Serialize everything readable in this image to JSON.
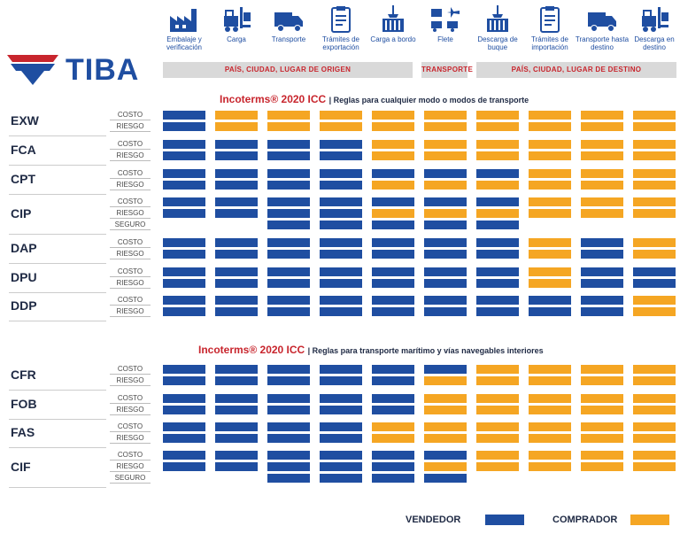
{
  "brand": {
    "name": "TIBA"
  },
  "colors": {
    "seller": "#1f4ea1",
    "buyer": "#f5a623",
    "accent": "#c8252d"
  },
  "steps": [
    {
      "label": "Embalaje y verificación",
      "icon": "factory-icon"
    },
    {
      "label": "Carga",
      "icon": "forklift-icon"
    },
    {
      "label": "Transporte",
      "icon": "truck-icon"
    },
    {
      "label": "Trámites de exportación",
      "icon": "clipboard-icon"
    },
    {
      "label": "Carga a bordo",
      "icon": "crane-icon"
    },
    {
      "label": "Flete",
      "icon": "multimodal-icon"
    },
    {
      "label": "Descarga de buque",
      "icon": "crane-icon"
    },
    {
      "label": "Trámites de importación",
      "icon": "clipboard-icon"
    },
    {
      "label": "Transporte hasta destino",
      "icon": "truck-icon"
    },
    {
      "label": "Descarga en destino",
      "icon": "forklift-icon"
    }
  ],
  "bands": {
    "origin": "PAÍS, CIUDAD, LUGAR DE ORIGEN",
    "transport": "TRANSPORTE",
    "destination": "PAÍS, CIUDAD, LUGAR DE DESTINO"
  },
  "sections": [
    {
      "title": "Incoterms® 2020 ICC",
      "subtitle": "| Reglas para cualquier modo o modos de transporte",
      "terms": [
        {
          "code": "EXW",
          "rows": [
            {
              "label": "COSTO",
              "cells": "SBBBBBBBBB"
            },
            {
              "label": "RIESGO",
              "cells": "SBBBBBBBBB"
            }
          ]
        },
        {
          "code": "FCA",
          "rows": [
            {
              "label": "COSTO",
              "cells": "SSSSBBBBBB"
            },
            {
              "label": "RIESGO",
              "cells": "SSSSBBBBBB"
            }
          ]
        },
        {
          "code": "CPT",
          "rows": [
            {
              "label": "COSTO",
              "cells": "SSSSSSSBBB"
            },
            {
              "label": "RIESGO",
              "cells": "SSSSBBBBBB"
            }
          ]
        },
        {
          "code": "CIP",
          "rows": [
            {
              "label": "COSTO",
              "cells": "SSSSSSSBBB"
            },
            {
              "label": "RIESGO",
              "cells": "SSSSBBBBBB"
            },
            {
              "label": "SEGURO",
              "cells": "--SSSSS---"
            }
          ]
        },
        {
          "code": "DAP",
          "rows": [
            {
              "label": "COSTO",
              "cells": "SSSSSSSBSB"
            },
            {
              "label": "RIESGO",
              "cells": "SSSSSSSBSB"
            }
          ]
        },
        {
          "code": "DPU",
          "rows": [
            {
              "label": "COSTO",
              "cells": "SSSSSSSBSS"
            },
            {
              "label": "RIESGO",
              "cells": "SSSSSSSBSS"
            }
          ]
        },
        {
          "code": "DDP",
          "rows": [
            {
              "label": "COSTO",
              "cells": "SSSSSSSSSB"
            },
            {
              "label": "RIESGO",
              "cells": "SSSSSSSSSB"
            }
          ]
        }
      ]
    },
    {
      "title": "Incoterms® 2020 ICC",
      "subtitle": "| Reglas para transporte marítimo y vías navegables interiores",
      "terms": [
        {
          "code": "CFR",
          "rows": [
            {
              "label": "COSTO",
              "cells": "SSSSSSBBBB"
            },
            {
              "label": "RIESGO",
              "cells": "SSSSSBBBBB"
            }
          ]
        },
        {
          "code": "FOB",
          "rows": [
            {
              "label": "COSTO",
              "cells": "SSSSSBBBBB"
            },
            {
              "label": "RIESGO",
              "cells": "SSSSSBBBBB"
            }
          ]
        },
        {
          "code": "FAS",
          "rows": [
            {
              "label": "COSTO",
              "cells": "SSSSBBBBBB"
            },
            {
              "label": "RIESGO",
              "cells": "SSSSBBBBBB"
            }
          ]
        },
        {
          "code": "CIF",
          "rows": [
            {
              "label": "COSTO",
              "cells": "SSSSSSBBBB"
            },
            {
              "label": "RIESGO",
              "cells": "SSSSSBBBBB"
            },
            {
              "label": "SEGURO",
              "cells": "--SSSS----"
            }
          ]
        }
      ]
    }
  ],
  "legend": {
    "seller": "VENDEDOR",
    "buyer": "COMPRADOR"
  }
}
